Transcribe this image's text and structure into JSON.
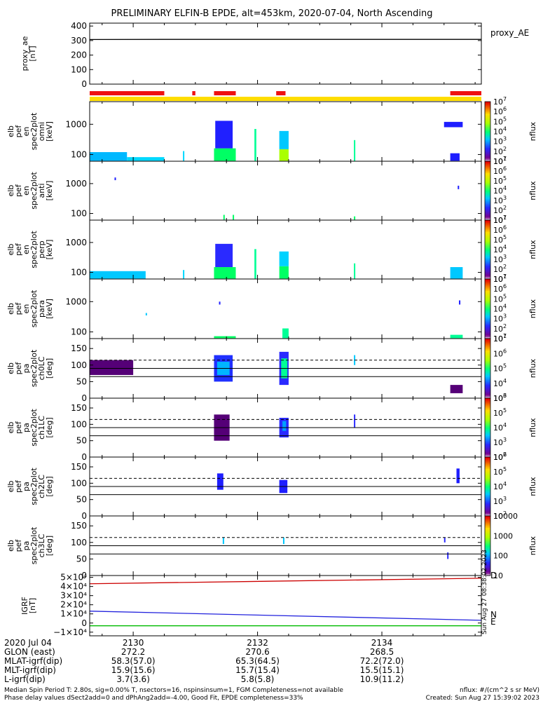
{
  "title": "PRELIMINARY ELFIN-B EPDE, alt=453km, 2020-07-04, North Ascending",
  "chart_data": {
    "type": "heatmap",
    "x_range": [
      2129.3,
      2135.6
    ],
    "x_unit": "UT hhmm",
    "panels": [
      {
        "id": "proxy_ae",
        "label_lines": [
          "proxy_ae",
          "[nT]"
        ],
        "right_label": "proxy_AE",
        "type": "line",
        "ylim": [
          0,
          420
        ],
        "yticks": [
          {
            "v": 400,
            "t": "400"
          },
          {
            "v": 300,
            "t": "300"
          },
          {
            "v": 200,
            "t": "200"
          },
          {
            "v": 100,
            "t": "100"
          },
          {
            "v": 0,
            "t": "0"
          }
        ],
        "series": [
          {
            "x": [
              2129.3,
              2130.5,
              2135.6
            ],
            "y": [
              307,
              308,
              308
            ]
          }
        ]
      },
      {
        "id": "spec_omni",
        "label_lines": [
          "elb",
          "pef",
          "en",
          "spec2plot",
          "omni",
          "[keV]"
        ],
        "type": "heatmap",
        "ylog": true,
        "ylim": [
          60,
          5600
        ],
        "yticks": [
          {
            "v": 1000,
            "t": "1000"
          },
          {
            "v": 100,
            "t": "100"
          }
        ],
        "cb": {
          "log_from": 1,
          "log_to": 7,
          "label": "nflux"
        },
        "blocks": [
          {
            "x0": 2129.3,
            "x1": 2129.9,
            "y0": 62,
            "y1": 120,
            "c": "#00b8ff"
          },
          {
            "x0": 2129.9,
            "x1": 2130.5,
            "y0": 62,
            "y1": 82,
            "c": "#00d8ff"
          },
          {
            "x0": 2130.8,
            "x1": 2130.82,
            "y0": 62,
            "y1": 130,
            "c": "#00d8ff"
          },
          {
            "x0": 2131.3,
            "x1": 2131.65,
            "y0": 62,
            "y1": 160,
            "c": "#00ff64"
          },
          {
            "x0": 2131.32,
            "x1": 2131.6,
            "y0": 160,
            "y1": 1300,
            "c": "#2020ff"
          },
          {
            "x0": 2131.95,
            "x1": 2131.98,
            "y0": 62,
            "y1": 700,
            "c": "#00ff96"
          },
          {
            "x0": 2132.35,
            "x1": 2132.5,
            "y0": 62,
            "y1": 150,
            "c": "#aaff00"
          },
          {
            "x0": 2132.35,
            "x1": 2132.5,
            "y0": 150,
            "y1": 600,
            "c": "#00c8ff"
          },
          {
            "x0": 2133.55,
            "x1": 2133.57,
            "y0": 62,
            "y1": 300,
            "c": "#00ff96"
          },
          {
            "x0": 2135.1,
            "x1": 2135.25,
            "y0": 62,
            "y1": 110,
            "c": "#1e1eff"
          },
          {
            "x0": 2135.0,
            "x1": 2135.3,
            "y0": 800,
            "y1": 1200,
            "c": "#1e1eff"
          }
        ]
      },
      {
        "id": "spec_anti",
        "label_lines": [
          "elb",
          "pef",
          "en",
          "spec2plot",
          "anti",
          "[keV]"
        ],
        "type": "heatmap",
        "ylog": true,
        "ylim": [
          60,
          5600
        ],
        "yticks": [
          {
            "v": 1000,
            "t": "1000"
          },
          {
            "v": 100,
            "t": "100"
          }
        ],
        "cb": {
          "log_from": 1,
          "log_to": 7,
          "label": "nflux"
        },
        "blocks": [
          {
            "x0": 2129.7,
            "x1": 2129.72,
            "y0": 1300,
            "y1": 1600,
            "c": "#1e1eff"
          },
          {
            "x0": 2131.45,
            "x1": 2131.47,
            "y0": 62,
            "y1": 90,
            "c": "#00ff64"
          },
          {
            "x0": 2131.6,
            "x1": 2131.62,
            "y0": 62,
            "y1": 90,
            "c": "#00ff64"
          },
          {
            "x0": 2133.55,
            "x1": 2133.57,
            "y0": 62,
            "y1": 80,
            "c": "#00ff64"
          },
          {
            "x0": 2135.22,
            "x1": 2135.24,
            "y0": 650,
            "y1": 850,
            "c": "#1e1eff"
          }
        ]
      },
      {
        "id": "spec_perp",
        "label_lines": [
          "elb",
          "pef",
          "en",
          "spec2plot",
          "perp",
          "[keV]"
        ],
        "type": "heatmap",
        "ylog": true,
        "ylim": [
          60,
          5600
        ],
        "yticks": [
          {
            "v": 1000,
            "t": "1000"
          },
          {
            "v": 100,
            "t": "100"
          }
        ],
        "cb": {
          "log_from": 1,
          "log_to": 7,
          "label": "nflux"
        },
        "blocks": [
          {
            "x0": 2129.3,
            "x1": 2130.2,
            "y0": 62,
            "y1": 110,
            "c": "#00c8ff"
          },
          {
            "x0": 2130.8,
            "x1": 2130.82,
            "y0": 62,
            "y1": 120,
            "c": "#00d8ff"
          },
          {
            "x0": 2131.3,
            "x1": 2131.65,
            "y0": 62,
            "y1": 150,
            "c": "#00ff64"
          },
          {
            "x0": 2131.32,
            "x1": 2131.6,
            "y0": 150,
            "y1": 900,
            "c": "#2a2aff"
          },
          {
            "x0": 2131.95,
            "x1": 2131.98,
            "y0": 62,
            "y1": 600,
            "c": "#00ff96"
          },
          {
            "x0": 2132.35,
            "x1": 2132.5,
            "y0": 62,
            "y1": 160,
            "c": "#00ff64"
          },
          {
            "x0": 2132.35,
            "x1": 2132.5,
            "y0": 160,
            "y1": 500,
            "c": "#00d2ff"
          },
          {
            "x0": 2133.55,
            "x1": 2133.57,
            "y0": 62,
            "y1": 200,
            "c": "#00ff96"
          },
          {
            "x0": 2135.1,
            "x1": 2135.3,
            "y0": 62,
            "y1": 150,
            "c": "#00c8ff"
          }
        ]
      },
      {
        "id": "spec_para",
        "label_lines": [
          "elb",
          "pef",
          "en",
          "spec2plot",
          "para",
          "[keV]"
        ],
        "type": "heatmap",
        "ylog": true,
        "ylim": [
          60,
          5600
        ],
        "yticks": [
          {
            "v": 1000,
            "t": "1000"
          },
          {
            "v": 100,
            "t": "100"
          }
        ],
        "cb": {
          "log_from": 1,
          "log_to": 7,
          "label": "nflux"
        },
        "blocks": [
          {
            "x0": 2130.2,
            "x1": 2130.22,
            "y0": 350,
            "y1": 420,
            "c": "#00c8ff"
          },
          {
            "x0": 2131.38,
            "x1": 2131.4,
            "y0": 800,
            "y1": 1000,
            "c": "#1e1eff"
          },
          {
            "x0": 2131.3,
            "x1": 2131.65,
            "y0": 62,
            "y1": 72,
            "c": "#00ff64"
          },
          {
            "x0": 2132.4,
            "x1": 2132.5,
            "y0": 62,
            "y1": 130,
            "c": "#00ff96"
          },
          {
            "x0": 2135.1,
            "x1": 2135.3,
            "y0": 62,
            "y1": 80,
            "c": "#00ff96"
          },
          {
            "x0": 2135.24,
            "x1": 2135.26,
            "y0": 800,
            "y1": 1100,
            "c": "#1e1eff"
          }
        ]
      },
      {
        "id": "pa_ch0",
        "label_lines": [
          "elb",
          "pef",
          "pa",
          "spec2plot",
          "ch0LC",
          "[deg]"
        ],
        "type": "heatmap",
        "ylog": false,
        "ylim": [
          0,
          180
        ],
        "yticks": [
          {
            "v": 150,
            "t": "150"
          },
          {
            "v": 100,
            "t": "100"
          },
          {
            "v": 50,
            "t": "50"
          },
          {
            "v": 0,
            "t": "0"
          }
        ],
        "hlines": [
          {
            "v": 115,
            "dash": true
          },
          {
            "v": 90,
            "dash": false
          },
          {
            "v": 65,
            "dash": false
          }
        ],
        "cb": {
          "log_from": 3,
          "log_to": 7,
          "label": "nflux"
        },
        "blocks": [
          {
            "x0": 2129.3,
            "x1": 2130.0,
            "y0": 70,
            "y1": 115,
            "c": "#550077"
          },
          {
            "x0": 2131.3,
            "x1": 2131.6,
            "y0": 50,
            "y1": 130,
            "c": "#2030ff"
          },
          {
            "x0": 2131.35,
            "x1": 2131.55,
            "y0": 70,
            "y1": 110,
            "c": "#00b4ff"
          },
          {
            "x0": 2132.35,
            "x1": 2132.5,
            "y0": 40,
            "y1": 140,
            "c": "#2a2aff"
          },
          {
            "x0": 2132.38,
            "x1": 2132.48,
            "y0": 60,
            "y1": 120,
            "c": "#00ff96"
          },
          {
            "x0": 2133.55,
            "x1": 2133.57,
            "y0": 100,
            "y1": 130,
            "c": "#00c8ff"
          },
          {
            "x0": 2135.1,
            "x1": 2135.3,
            "y0": 15,
            "y1": 40,
            "c": "#550077"
          }
        ]
      },
      {
        "id": "pa_ch1",
        "label_lines": [
          "elb",
          "pef",
          "pa",
          "spec2plot",
          "ch1LC",
          "[deg]"
        ],
        "type": "heatmap",
        "ylog": false,
        "ylim": [
          0,
          180
        ],
        "yticks": [
          {
            "v": 150,
            "t": "150"
          },
          {
            "v": 100,
            "t": "100"
          },
          {
            "v": 50,
            "t": "50"
          },
          {
            "v": 0,
            "t": "0"
          }
        ],
        "hlines": [
          {
            "v": 115,
            "dash": true
          },
          {
            "v": 90,
            "dash": false
          },
          {
            "v": 65,
            "dash": false
          }
        ],
        "cb": {
          "log_from": 2,
          "log_to": 6,
          "label": "nflux"
        },
        "blocks": [
          {
            "x0": 2131.3,
            "x1": 2131.55,
            "y0": 50,
            "y1": 130,
            "c": "#550077"
          },
          {
            "x0": 2132.35,
            "x1": 2132.5,
            "y0": 60,
            "y1": 120,
            "c": "#2a2aff"
          },
          {
            "x0": 2132.4,
            "x1": 2132.46,
            "y0": 80,
            "y1": 110,
            "c": "#00a0ff"
          },
          {
            "x0": 2133.55,
            "x1": 2133.57,
            "y0": 90,
            "y1": 130,
            "c": "#2a2aff"
          }
        ]
      },
      {
        "id": "pa_ch2",
        "label_lines": [
          "elb",
          "pef",
          "pa",
          "spec2plot",
          "ch2LC",
          "[deg]"
        ],
        "type": "heatmap",
        "ylog": false,
        "ylim": [
          0,
          180
        ],
        "yticks": [
          {
            "v": 150,
            "t": "150"
          },
          {
            "v": 100,
            "t": "100"
          },
          {
            "v": 50,
            "t": "50"
          },
          {
            "v": 0,
            "t": "0"
          }
        ],
        "hlines": [
          {
            "v": 115,
            "dash": true
          },
          {
            "v": 90,
            "dash": false
          },
          {
            "v": 65,
            "dash": false
          }
        ],
        "cb": {
          "log_from": 2,
          "log_to": 6,
          "label": "nflux"
        },
        "blocks": [
          {
            "x0": 2131.35,
            "x1": 2131.45,
            "y0": 80,
            "y1": 130,
            "c": "#1e1eff"
          },
          {
            "x0": 2132.35,
            "x1": 2132.48,
            "y0": 70,
            "y1": 110,
            "c": "#1e1eff"
          },
          {
            "x0": 2135.2,
            "x1": 2135.25,
            "y0": 100,
            "y1": 145,
            "c": "#1e1eff"
          }
        ]
      },
      {
        "id": "pa_ch3",
        "label_lines": [
          "elb",
          "pef",
          "pa",
          "spec2plot",
          "ch3LC",
          "[deg]"
        ],
        "type": "heatmap",
        "ylog": false,
        "ylim": [
          0,
          180
        ],
        "yticks": [
          {
            "v": 150,
            "t": "150"
          },
          {
            "v": 100,
            "t": "100"
          },
          {
            "v": 50,
            "t": "50"
          },
          {
            "v": 0,
            "t": "0"
          }
        ],
        "hlines": [
          {
            "v": 115,
            "dash": true
          },
          {
            "v": 90,
            "dash": false
          },
          {
            "v": 65,
            "dash": false
          }
        ],
        "cb": {
          "log_from": 1,
          "log_to": 4,
          "label": "nflux",
          "ticks": [
            "10",
            "100",
            "1000",
            "10000"
          ]
        },
        "blocks": [
          {
            "x0": 2131.44,
            "x1": 2131.46,
            "y0": 95,
            "y1": 115,
            "c": "#00c8ff"
          },
          {
            "x0": 2132.41,
            "x1": 2132.43,
            "y0": 95,
            "y1": 115,
            "c": "#00c8ff"
          },
          {
            "x0": 2135.0,
            "x1": 2135.02,
            "y0": 100,
            "y1": 115,
            "c": "#2a2aff"
          },
          {
            "x0": 2135.05,
            "x1": 2135.07,
            "y0": 50,
            "y1": 70,
            "c": "#2a2aff"
          }
        ]
      },
      {
        "id": "igrf",
        "label_lines": [
          "IGRF",
          "[nT]"
        ],
        "type": "line",
        "ylim": [
          -14000,
          52000
        ],
        "yticks": [
          {
            "v": 50000,
            "t": "5×10⁴"
          },
          {
            "v": 40000,
            "t": "4×10⁴"
          },
          {
            "v": 30000,
            "t": "3×10⁴"
          },
          {
            "v": 20000,
            "t": "2×10⁴"
          },
          {
            "v": 10000,
            "t": "1×10⁴"
          },
          {
            "v": 0,
            "t": "0"
          },
          {
            "v": -10000,
            "t": "−1×10⁴"
          }
        ],
        "right_labels": [
          "D",
          "N",
          "E"
        ],
        "series": [
          {
            "name": "D",
            "color": "#cc0000",
            "x": [
              2129.3,
              2135.6
            ],
            "y": [
              43000,
              49000
            ]
          },
          {
            "name": "N",
            "color": "#2222dd",
            "x": [
              2129.3,
              2135.6
            ],
            "y": [
              13000,
              3000
            ]
          },
          {
            "name": "E",
            "color": "#00bb00",
            "x": [
              2129.3,
              2135.6
            ],
            "y": [
              -3000,
              -3000
            ]
          }
        ]
      }
    ],
    "status_bars": {
      "red_segments": [
        [
          2129.3,
          2130.5
        ],
        [
          2130.95,
          2131.0
        ],
        [
          2131.3,
          2131.65
        ],
        [
          2132.3,
          2132.45
        ],
        [
          2135.1,
          2135.6
        ]
      ],
      "yellow_range": [
        2129.3,
        2135.6
      ]
    },
    "x_ticks": [
      "2130",
      "2132",
      "2134"
    ],
    "orbit_table": {
      "labels": [
        "2020 Jul 04",
        "GLON (east)",
        "MLAT-igrf(dip)",
        "MLT-igrf(dip)",
        "L-igrf(dip)"
      ],
      "columns": [
        {
          "x": 2130,
          "values": [
            "2130",
            "272.2",
            "58.3(57.0)",
            "15.9(15.6)",
            "3.7(3.6)"
          ]
        },
        {
          "x": 2132,
          "values": [
            "2132",
            "270.6",
            "65.3(64.5)",
            "15.7(15.4)",
            "5.8(5.8)"
          ]
        },
        {
          "x": 2134,
          "values": [
            "2134",
            "268.5",
            "72.2(72.0)",
            "15.5(15.1)",
            "10.9(11.2)"
          ]
        }
      ]
    }
  },
  "colorbar_labels": [
    "10",
    "10",
    "10",
    "10",
    "10",
    "10",
    "10"
  ],
  "footer": {
    "left1": "Median Spin Period T: 2.80s, sig=0.00% T, nsectors=16, nspinsinsum=1, FGM Completeness=not available",
    "left2": "Phase delay values dSect2add=0 and dPhAng2add=-4.00, Good Fit, EPDE completeness=33%",
    "right1": "nflux: #/(cm^2 s sr MeV)",
    "right2": "Created: Sun Aug 27 15:39:02 2023"
  },
  "side_stamp": "Sun Aug 27 08:38:02 2023"
}
